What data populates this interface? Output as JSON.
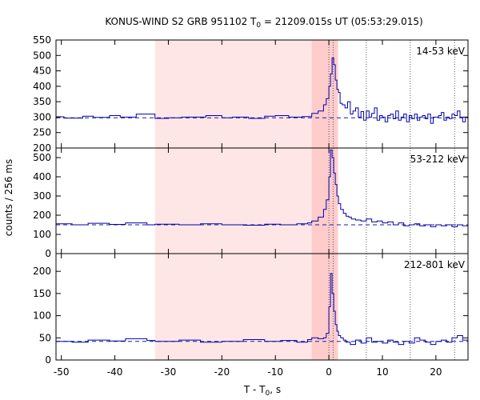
{
  "chart_data": {
    "type": "line",
    "title": "KONUS-WIND S2 GRB 951102 T",
    "title_sub": "0",
    "title_rest": " = 21209.015s UT (05:53:29.015)",
    "xlabel": "T - T",
    "xlabel_sub": "0",
    "xlabel_rest": ", s",
    "ylabel": "counts / 256 ms",
    "xlim": [
      -51,
      26
    ],
    "xticks": [
      -50,
      -40,
      -30,
      -20,
      -10,
      0,
      10,
      20
    ],
    "x_tick_labels": [
      "-50",
      "-40",
      "-30",
      "-20",
      "-10",
      "0",
      "10",
      "20"
    ],
    "light_bands": [
      [
        -32.5,
        1.7
      ]
    ],
    "dark_bands": [
      [
        -3.2,
        1.7
      ]
    ],
    "dotted_lines": [
      0,
      0.8,
      7.0,
      15.2,
      23.5
    ],
    "panels": [
      {
        "band": "14-53 keV",
        "ylim": [
          200,
          550
        ],
        "yticks": [
          200,
          250,
          300,
          350,
          400,
          450,
          500,
          550
        ],
        "y_tick_labels": [
          "200",
          "250",
          "300",
          "350",
          "400",
          "450",
          "500",
          "550"
        ],
        "background": 298,
        "series": [
          {
            "name": "14-53 keV",
            "x": [
              -51,
              -49.5,
              -46,
              -44,
              -41,
              -39,
              -36,
              -32.5,
              -30,
              -27.5,
              -23,
              -20,
              -18,
              -15,
              -12,
              -10,
              -7.5,
              -5,
              -3.2,
              -2,
              -1,
              -0.5,
              0,
              0.3,
              0.6,
              0.9,
              1.2,
              1.5,
              1.8,
              2.1,
              2.5,
              3,
              3.5,
              4,
              4.5,
              5,
              5.5,
              6,
              6.5,
              7,
              7.5,
              8,
              8.5,
              9,
              9.5,
              10,
              10.5,
              11,
              11.5,
              12,
              12.5,
              13,
              13.5,
              14,
              14.5,
              15,
              15.5,
              16,
              16.5,
              17,
              17.5,
              18,
              18.5,
              19,
              19.5,
              20,
              20.5,
              21,
              21.5,
              22,
              22.5,
              23,
              23.5,
              24,
              24.5,
              25,
              25.5,
              26
            ],
            "values": [
              301,
              297,
              303,
              299,
              305,
              300,
              310,
              296,
              298,
              300,
              305,
              298,
              300,
              296,
              303,
              305,
              300,
              302,
              312,
              320,
              340,
              360,
              400,
              440,
              492,
              470,
              420,
              390,
              380,
              345,
              340,
              330,
              350,
              310,
              320,
              330,
              300,
              318,
              290,
              320,
              300,
              312,
              330,
              290,
              305,
              300,
              285,
              305,
              310,
              295,
              320,
              290,
              300,
              310,
              285,
              305,
              295,
              310,
              290,
              300,
              305,
              295,
              310,
              280,
              300,
              300,
              305,
              315,
              290,
              300,
              295,
              310,
              305,
              320,
              300,
              285,
              300,
              290
            ]
          }
        ]
      },
      {
        "band": "53-212 keV",
        "ylim": [
          0,
          550
        ],
        "yticks": [
          0,
          100,
          200,
          300,
          400,
          500
        ],
        "y_tick_labels": [
          "0",
          "100",
          "200",
          "300",
          "400",
          "500"
        ],
        "background": 150,
        "series": [
          {
            "name": "53-212 keV",
            "x": [
              -51,
              -48,
              -45,
              -41,
              -38,
              -34,
              -32.5,
              -28,
              -24,
              -20,
              -16,
              -12,
              -9,
              -6,
              -4,
              -3.2,
              -2,
              -1,
              -0.5,
              0,
              0.3,
              0.6,
              0.9,
              1.2,
              1.5,
              1.8,
              2.2,
              2.7,
              3.2,
              3.7,
              4.2,
              5,
              6,
              7,
              8,
              9,
              10,
              11,
              12,
              13,
              14,
              15,
              16,
              17,
              18,
              19,
              20,
              21,
              22,
              23,
              24,
              25,
              26
            ],
            "values": [
              155,
              150,
              158,
              152,
              160,
              150,
              153,
              150,
              155,
              150,
              148,
              153,
              150,
              155,
              160,
              170,
              190,
              230,
              280,
              400,
              540,
              500,
              420,
              360,
              300,
              260,
              230,
              210,
              195,
              190,
              180,
              175,
              170,
              180,
              165,
              170,
              160,
              165,
              150,
              160,
              145,
              150,
              155,
              145,
              150,
              140,
              150,
              145,
              150,
              140,
              150,
              145,
              150
            ]
          }
        ]
      },
      {
        "band": "212-801 keV",
        "ylim": [
          0,
          240
        ],
        "yticks": [
          0,
          50,
          100,
          150,
          200
        ],
        "y_tick_labels": [
          "0",
          "50",
          "100",
          "150",
          "200"
        ],
        "background": 42,
        "series": [
          {
            "name": "212-801 keV",
            "x": [
              -51,
              -48,
              -45,
              -41,
              -38,
              -34,
              -32.5,
              -28,
              -24,
              -20,
              -16,
              -12,
              -9,
              -6,
              -4,
              -3.2,
              -2,
              -1,
              -0.5,
              0,
              0.3,
              0.6,
              0.9,
              1.2,
              1.5,
              1.8,
              2.2,
              2.7,
              3.2,
              4,
              5,
              6,
              7,
              8,
              9,
              10,
              11,
              12,
              13,
              14,
              15,
              16,
              17,
              18,
              19,
              20,
              21,
              22,
              23,
              24,
              25,
              26
            ],
            "values": [
              42,
              40,
              45,
              43,
              48,
              44,
              42,
              45,
              40,
              42,
              46,
              42,
              44,
              40,
              46,
              50,
              48,
              50,
              60,
              120,
              195,
              150,
              110,
              80,
              65,
              55,
              50,
              45,
              40,
              35,
              45,
              38,
              50,
              40,
              42,
              38,
              45,
              40,
              35,
              42,
              38,
              50,
              45,
              40,
              35,
              42,
              45,
              40,
              50,
              55,
              45,
              40
            ]
          }
        ]
      }
    ]
  }
}
